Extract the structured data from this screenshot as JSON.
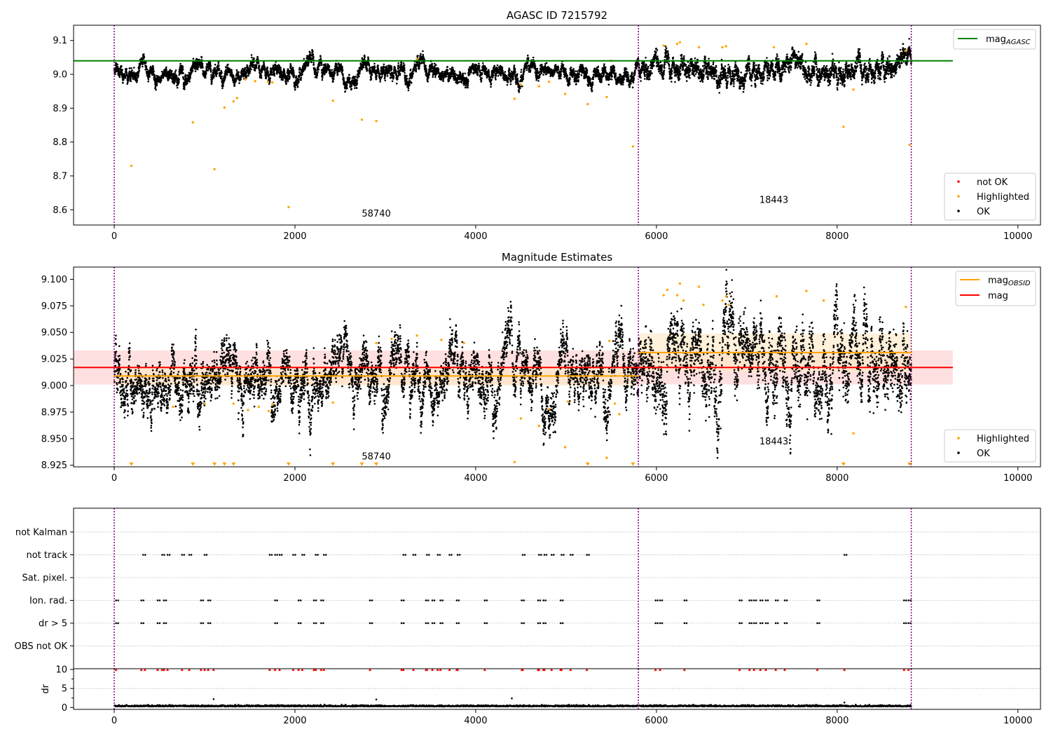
{
  "colors": {
    "ok": "#000000",
    "highlighted": "#ffa500",
    "not_ok": "#ff0000",
    "agasc_line": "#008000",
    "obsid_line": "#ffa500",
    "mag_line": "#ff0000",
    "obs_boundary": "#800080",
    "mag_band": "#ffcccc",
    "obsid_band": "#ffe8c2"
  },
  "chart_data": [
    {
      "id": "agasc",
      "type": "scatter",
      "title": "AGASC ID 7215792",
      "xlim": [
        -450,
        10250
      ],
      "ylim": [
        8.555,
        9.145
      ],
      "xticks": [
        0,
        2000,
        4000,
        6000,
        8000,
        10000
      ],
      "yticks": [
        8.6,
        8.7,
        8.8,
        8.9,
        9.0,
        9.1
      ],
      "ytick_decimals": 1,
      "grid": false,
      "obs_boundaries": [
        0,
        5800,
        8820
      ],
      "hlines": [
        {
          "name": "mag",
          "subscript": "AGASC",
          "y": 9.04,
          "x": [
            -450,
            9280
          ],
          "color": "#008000"
        }
      ],
      "annotations": [
        {
          "text": "58740",
          "x": 2900,
          "y": 8.58
        },
        {
          "text": "18443",
          "x": 7300,
          "y": 8.62
        }
      ],
      "legend": {
        "upper_right": [
          {
            "label": "mag",
            "sub": "AGASC",
            "kind": "line",
            "color": "#008000"
          }
        ],
        "lower_right": [
          {
            "label": "not OK",
            "kind": "dot",
            "color": "#ff0000"
          },
          {
            "label": "Highlighted",
            "kind": "dot",
            "color": "#ffa500"
          },
          {
            "label": "OK",
            "kind": "dot",
            "color": "#000000"
          }
        ]
      },
      "series": [
        {
          "name": "OK",
          "segments": [
            {
              "x": [
                0,
                5800
              ],
              "center": 9.008,
              "spread": 0.011
            },
            {
              "x": [
                5800,
                8820
              ],
              "center": 9.028,
              "spread": 0.016
            }
          ]
        },
        {
          "name": "Highlighted",
          "points": [
            [
              190,
              8.73
            ],
            [
              870,
              8.858
            ],
            [
              1110,
              8.72
            ],
            [
              1220,
              8.902
            ],
            [
              1320,
              8.92
            ],
            [
              1360,
              8.93
            ],
            [
              1930,
              8.608
            ],
            [
              2420,
              8.922
            ],
            [
              2740,
              8.866
            ],
            [
              2900,
              8.862
            ],
            [
              4430,
              8.928
            ],
            [
              4500,
              8.969
            ],
            [
              4700,
              8.965
            ],
            [
              4810,
              8.978
            ],
            [
              4990,
              8.942
            ],
            [
              5240,
              8.912
            ],
            [
              5450,
              8.933
            ],
            [
              5740,
              8.787
            ],
            [
              8070,
              8.845
            ],
            [
              8180,
              8.955
            ],
            [
              8800,
              8.792
            ],
            [
              1450,
              8.985
            ],
            [
              1560,
              8.98
            ],
            [
              1700,
              8.978
            ],
            [
              1750,
              8.976
            ],
            [
              3350,
              9.045
            ],
            [
              5500,
              9.04
            ],
            [
              6080,
              9.085
            ],
            [
              6230,
              9.09
            ],
            [
              6260,
              9.095
            ],
            [
              6470,
              9.08
            ],
            [
              6730,
              9.08
            ],
            [
              6770,
              9.083
            ],
            [
              7300,
              9.08
            ],
            [
              7660,
              9.09
            ],
            [
              8760,
              9.07
            ]
          ]
        }
      ]
    },
    {
      "id": "estimates",
      "type": "scatter",
      "title": "Magnitude Estimates",
      "xlim": [
        -450,
        10250
      ],
      "ylim": [
        8.9235,
        9.1115
      ],
      "xticks": [
        0,
        2000,
        4000,
        6000,
        8000,
        10000
      ],
      "yticks": [
        8.925,
        8.95,
        8.975,
        9.0,
        9.025,
        9.05,
        9.075,
        9.1
      ],
      "ytick_decimals": 3,
      "grid": false,
      "obs_boundaries": [
        0,
        5800,
        8820
      ],
      "bands": [
        {
          "name": "mag",
          "x": [
            -450,
            9280
          ],
          "y": [
            9.001,
            9.033
          ],
          "color": "#ffcccc"
        },
        {
          "name": "mag OBSID 58740",
          "x": [
            0,
            5800
          ],
          "y": [
            9.0,
            9.018
          ],
          "color": "#ffe8c2"
        },
        {
          "name": "mag OBSID 18443",
          "x": [
            5800,
            8820
          ],
          "y": [
            9.013,
            9.049
          ],
          "color": "#ffe8c2"
        }
      ],
      "hlines": [
        {
          "name": "mag",
          "subscript": "OBSID",
          "y": 9.009,
          "x": [
            0,
            5800
          ],
          "color": "#ffa500"
        },
        {
          "name": "mag",
          "subscript": "OBSID",
          "y": 9.031,
          "x": [
            5800,
            8820
          ],
          "color": "#ffa500"
        },
        {
          "name": "mag",
          "y": 9.017,
          "x": [
            -450,
            9280
          ],
          "color": "#ff0000"
        }
      ],
      "annotations": [
        {
          "text": "58740",
          "x": 2900,
          "y": 8.9305
        },
        {
          "text": "18443",
          "x": 7300,
          "y": 8.9445
        }
      ],
      "legend": {
        "upper_right": [
          {
            "label": "mag",
            "sub": "OBSID",
            "kind": "line",
            "color": "#ffa500"
          },
          {
            "label": "mag",
            "kind": "line",
            "color": "#ff0000"
          }
        ],
        "lower_right": [
          {
            "label": "Highlighted",
            "kind": "dot",
            "color": "#ffa500"
          },
          {
            "label": "OK",
            "kind": "dot",
            "color": "#000000"
          }
        ]
      },
      "series": [
        {
          "name": "OK",
          "segments": [
            {
              "x": [
                0,
                5800
              ],
              "center": 9.009,
              "spread": 0.012
            },
            {
              "x": [
                5800,
                8820
              ],
              "center": 9.031,
              "spread": 0.018
            }
          ]
        },
        {
          "name": "Highlighted",
          "points": [
            [
              650,
              8.98
            ],
            [
              1000,
              8.983
            ],
            [
              1320,
              8.983
            ],
            [
              1480,
              8.977
            ],
            [
              1600,
              8.98
            ],
            [
              1710,
              8.976
            ],
            [
              1750,
              8.982
            ],
            [
              2420,
              8.984
            ],
            [
              2900,
              9.04
            ],
            [
              3070,
              9.044
            ],
            [
              3350,
              9.047
            ],
            [
              3620,
              9.043
            ],
            [
              3870,
              9.04
            ],
            [
              4430,
              8.928
            ],
            [
              4500,
              8.969
            ],
            [
              4700,
              8.962
            ],
            [
              4810,
              8.978
            ],
            [
              4990,
              8.942
            ],
            [
              5020,
              8.985
            ],
            [
              5450,
              8.932
            ],
            [
              5540,
              8.983
            ],
            [
              5590,
              8.973
            ],
            [
              5480,
              9.042
            ],
            [
              8180,
              8.955
            ],
            [
              6080,
              9.085
            ],
            [
              6120,
              9.09
            ],
            [
              6230,
              9.085
            ],
            [
              6260,
              9.096
            ],
            [
              6300,
              9.08
            ],
            [
              6470,
              9.093
            ],
            [
              6520,
              9.076
            ],
            [
              6730,
              9.08
            ],
            [
              6770,
              9.084
            ],
            [
              6800,
              9.076
            ],
            [
              7330,
              9.084
            ],
            [
              7660,
              9.089
            ],
            [
              7850,
              9.08
            ],
            [
              8760,
              9.074
            ]
          ]
        },
        {
          "name": "Highlighted (off scale)",
          "marker": "triangle-down",
          "points": [
            [
              190,
              8.925
            ],
            [
              870,
              8.925
            ],
            [
              1110,
              8.925
            ],
            [
              1220,
              8.925
            ],
            [
              1320,
              8.925
            ],
            [
              1930,
              8.925
            ],
            [
              2420,
              8.925
            ],
            [
              2740,
              8.925
            ],
            [
              2900,
              8.925
            ],
            [
              5240,
              8.925
            ],
            [
              5740,
              8.925
            ],
            [
              8070,
              8.925
            ],
            [
              8800,
              8.925
            ]
          ]
        }
      ]
    },
    {
      "id": "flags",
      "type": "scatter",
      "title": "",
      "xlim": [
        -450,
        10250
      ],
      "categories": [
        "not Kalman",
        "not track",
        "Sat. pixel.",
        "Ion. rad.",
        "dr > 5",
        "OBS not OK"
      ],
      "xticks": [],
      "grid": "y",
      "obs_boundaries": [
        0,
        5800,
        8820
      ],
      "series": [
        {
          "name": "not Kalman",
          "x": []
        },
        {
          "name": "not track",
          "x": [
            320,
            530,
            590,
            750,
            830,
            1000,
            1720,
            1780,
            1830,
            1980,
            2080,
            2230,
            2320,
            3200,
            3310,
            3460,
            3580,
            3710,
            3800,
            4520,
            4700,
            4760,
            4840,
            4950,
            5050,
            5230,
            8080
          ]
        },
        {
          "name": "Sat. pixel.",
          "x": []
        },
        {
          "name": "Ion. rad.",
          "x": [
            20,
            300,
            480,
            550,
            960,
            1040,
            1780,
            2040,
            2210,
            2290,
            2830,
            3180,
            3450,
            3520,
            3610,
            3790,
            4100,
            4510,
            4690,
            4750,
            4940,
            5990,
            6040,
            6310,
            6920,
            7030,
            7080,
            7150,
            7210,
            7320,
            7420,
            7780,
            8740,
            8790
          ]
        },
        {
          "name": "dr > 5",
          "x": [
            20,
            300,
            480,
            550,
            960,
            1040,
            1780,
            2040,
            2210,
            2290,
            2830,
            3180,
            3450,
            3520,
            3610,
            3790,
            4100,
            4510,
            4690,
            4750,
            4940,
            5990,
            6040,
            6310,
            6920,
            7030,
            7080,
            7150,
            7210,
            7320,
            7420,
            7780,
            8740,
            8790
          ]
        },
        {
          "name": "OBS not OK",
          "x": []
        }
      ]
    },
    {
      "id": "dr",
      "type": "scatter",
      "title": "",
      "ylabel": "dr",
      "xlim": [
        -450,
        10250
      ],
      "ylim": [
        -0.5,
        10.2
      ],
      "xticks": [
        0,
        2000,
        4000,
        6000,
        8000,
        10000
      ],
      "yticks": [
        0,
        5,
        10
      ],
      "grid": false,
      "obs_boundaries": [
        0,
        5800,
        8820
      ],
      "series": [
        {
          "name": "dr",
          "x_range": [
            0,
            8820
          ],
          "center": 0.35,
          "spread": 0.25
        },
        {
          "name": "dr outliers",
          "points": [
            [
              1100,
              2.2
            ],
            [
              2900,
              2.1
            ],
            [
              4400,
              2.4
            ],
            [
              8080,
              1.3
            ]
          ]
        },
        {
          "name": "dr > 10",
          "marker": "triangle-up",
          "color": "#ff0000",
          "y": 10,
          "x": [
            20,
            300,
            340,
            480,
            530,
            550,
            590,
            750,
            830,
            960,
            1000,
            1040,
            1100,
            1720,
            1780,
            1830,
            1980,
            2040,
            2080,
            2210,
            2230,
            2290,
            2320,
            2830,
            3180,
            3200,
            3310,
            3450,
            3460,
            3520,
            3580,
            3610,
            3710,
            3790,
            3800,
            4100,
            4510,
            4520,
            4690,
            4700,
            4750,
            4760,
            4840,
            4940,
            4950,
            5050,
            5230,
            5990,
            6040,
            6310,
            6920,
            7030,
            7080,
            7150,
            7210,
            7320,
            7420,
            7780,
            8080,
            8740,
            8790
          ]
        }
      ]
    }
  ]
}
